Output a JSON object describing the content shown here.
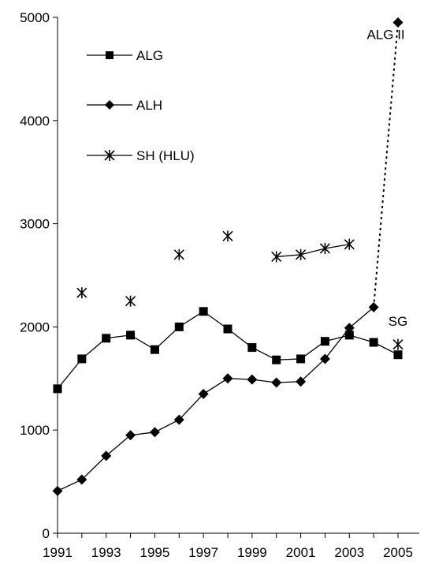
{
  "chart_data": {
    "type": "line",
    "x_range": [
      1991,
      2005
    ],
    "ylim": [
      0,
      5000
    ],
    "yticks": [
      0,
      1000,
      2000,
      3000,
      4000,
      5000
    ],
    "xticks": [
      1991,
      1993,
      1995,
      1997,
      1999,
      2001,
      2003,
      2005
    ],
    "grid": false,
    "legend_position": "top-left",
    "series": [
      {
        "name": "ALG",
        "marker": "square",
        "points": [
          {
            "x": 1991,
            "y": 1400
          },
          {
            "x": 1992,
            "y": 1690
          },
          {
            "x": 1993,
            "y": 1890
          },
          {
            "x": 1994,
            "y": 1920
          },
          {
            "x": 1995,
            "y": 1780
          },
          {
            "x": 1996,
            "y": 2000
          },
          {
            "x": 1997,
            "y": 2150
          },
          {
            "x": 1998,
            "y": 1980
          },
          {
            "x": 1999,
            "y": 1800
          },
          {
            "x": 2000,
            "y": 1680
          },
          {
            "x": 2001,
            "y": 1690
          },
          {
            "x": 2002,
            "y": 1860
          },
          {
            "x": 2003,
            "y": 1920
          },
          {
            "x": 2004,
            "y": 1850
          },
          {
            "x": 2005,
            "y": 1730
          }
        ]
      },
      {
        "name": "ALH",
        "marker": "diamond",
        "points": [
          {
            "x": 1991,
            "y": 410
          },
          {
            "x": 1992,
            "y": 520
          },
          {
            "x": 1993,
            "y": 750
          },
          {
            "x": 1994,
            "y": 950
          },
          {
            "x": 1995,
            "y": 980
          },
          {
            "x": 1996,
            "y": 1100
          },
          {
            "x": 1997,
            "y": 1350
          },
          {
            "x": 1998,
            "y": 1500
          },
          {
            "x": 1999,
            "y": 1490
          },
          {
            "x": 2000,
            "y": 1460
          },
          {
            "x": 2001,
            "y": 1470
          },
          {
            "x": 2002,
            "y": 1690
          },
          {
            "x": 2003,
            "y": 1990
          },
          {
            "x": 2004,
            "y": 2190
          }
        ]
      },
      {
        "name": "SH (HLU)",
        "marker": "asterisk",
        "points": [
          {
            "x": 1992,
            "y": 2330
          },
          {
            "x": 1994,
            "y": 2250
          },
          {
            "x": 1996,
            "y": 2700
          },
          {
            "x": 1998,
            "y": 2880
          },
          {
            "x": 2000,
            "y": 2680
          },
          {
            "x": 2001,
            "y": 2700
          },
          {
            "x": 2002,
            "y": 2760
          },
          {
            "x": 2003,
            "y": 2800
          },
          {
            "x": 2005,
            "y": 1830
          }
        ],
        "connected_segment": [
          2000,
          2003
        ]
      },
      {
        "name": "ALG II",
        "marker": "diamond",
        "dashed_link_from": {
          "x": 2004,
          "y": 2190
        },
        "points": [
          {
            "x": 2005,
            "y": 4950
          }
        ]
      }
    ],
    "annotations": [
      {
        "text": "ALG II",
        "x": 2004.5,
        "y": 4790
      },
      {
        "text": "SG",
        "x": 2005,
        "y": 2010
      }
    ]
  }
}
